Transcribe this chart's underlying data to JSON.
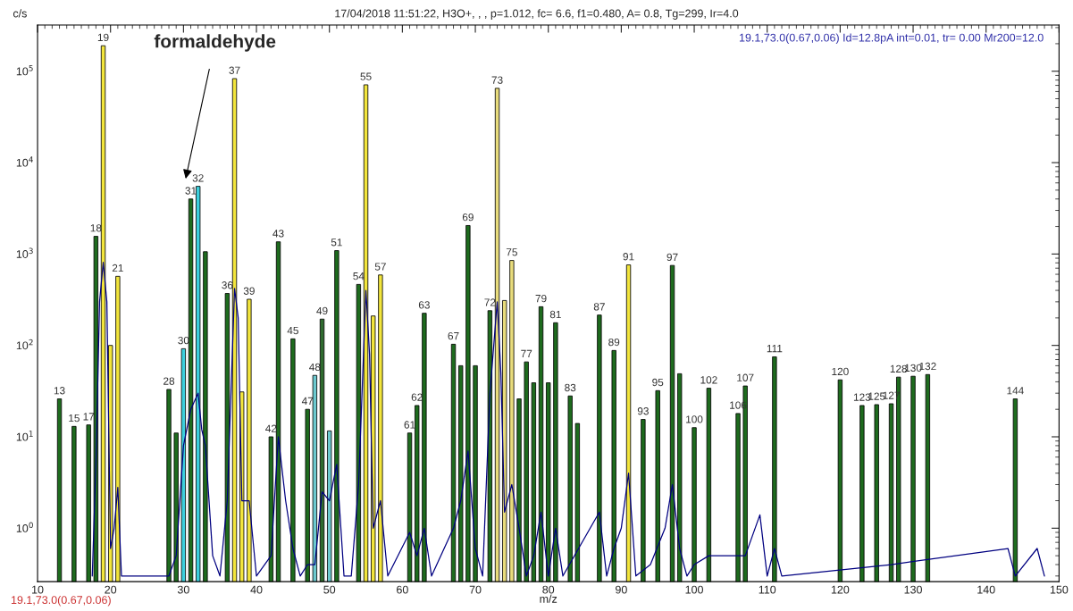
{
  "chart_data": {
    "type": "bar",
    "title": "17/04/2018 11:51:22, H3O+, , , p=1.012, fc= 6.6, f1=0.480, A= 0.8, Tg=299, Ir=4.0",
    "xlabel": "m/z",
    "ylabel": "c/s",
    "log": "y",
    "grid": false,
    "xlim": [
      10,
      150
    ],
    "xticks": [
      10,
      20,
      30,
      40,
      50,
      60,
      70,
      80,
      90,
      100,
      110,
      120,
      130,
      140,
      150
    ],
    "ylim": [
      0.26,
      320000
    ],
    "yticks": [
      {
        "value": 1,
        "label": "10$^{0}$"
      },
      {
        "value": 10,
        "label": "10$^{1}$"
      },
      {
        "value": 100,
        "label": "10$^{2}$"
      },
      {
        "value": 1000,
        "label": "10$^{3}$"
      },
      {
        "value": 10000,
        "label": "10$^{4}$"
      },
      {
        "value": 100000,
        "label": "10$^{5}$"
      }
    ],
    "annotations": [
      "formaldehyde",
      "19.1,73.0(0.67,0.06) Id=12.8pA int=0.01, tr= 0.00 Mr200=12.0",
      "19.1,73.0(0.67,0.06)",
      {
        "text": "13",
        "x": 13,
        "y": 26
      },
      {
        "text": "15",
        "x": 15,
        "y": 13
      },
      {
        "text": "17",
        "x": 17,
        "y": 13.5
      },
      {
        "text": "18",
        "x": 18,
        "y": 1560
      },
      {
        "text": "19",
        "x": 19,
        "y": 190000
      },
      {
        "text": "21",
        "x": 21,
        "y": 570
      },
      {
        "text": "28",
        "x": 28,
        "y": 33
      },
      {
        "text": "30",
        "x": 30,
        "y": 92
      },
      {
        "text": "31",
        "x": 31,
        "y": 4000
      },
      {
        "text": "32",
        "x": 32,
        "y": 5500
      },
      {
        "text": "36",
        "x": 36,
        "y": 370
      },
      {
        "text": "37",
        "x": 37,
        "y": 83000
      },
      {
        "text": "39",
        "x": 39,
        "y": 320
      },
      {
        "text": "42",
        "x": 42,
        "y": 10
      },
      {
        "text": "43",
        "x": 43,
        "y": 1360
      },
      {
        "text": "45",
        "x": 45,
        "y": 118
      },
      {
        "text": "47",
        "x": 47,
        "y": 20
      },
      {
        "text": "48",
        "x": 48,
        "y": 47
      },
      {
        "text": "49",
        "x": 49,
        "y": 194
      },
      {
        "text": "51",
        "x": 51,
        "y": 1090
      },
      {
        "text": "54",
        "x": 54,
        "y": 465
      },
      {
        "text": "55",
        "x": 55,
        "y": 71000
      },
      {
        "text": "57",
        "x": 57,
        "y": 590
      },
      {
        "text": "61",
        "x": 61,
        "y": 11
      },
      {
        "text": "62",
        "x": 62,
        "y": 22
      },
      {
        "text": "63",
        "x": 63,
        "y": 225
      },
      {
        "text": "67",
        "x": 67,
        "y": 103
      },
      {
        "text": "69",
        "x": 69,
        "y": 2050
      },
      {
        "text": "72",
        "x": 72,
        "y": 240
      },
      {
        "text": "73",
        "x": 73,
        "y": 65000
      },
      {
        "text": "75",
        "x": 75,
        "y": 850
      },
      {
        "text": "77",
        "x": 77,
        "y": 66
      },
      {
        "text": "79",
        "x": 79,
        "y": 265
      },
      {
        "text": "81",
        "x": 81,
        "y": 177
      },
      {
        "text": "83",
        "x": 83,
        "y": 28
      },
      {
        "text": "87",
        "x": 87,
        "y": 215
      },
      {
        "text": "89",
        "x": 89,
        "y": 88
      },
      {
        "text": "91",
        "x": 91,
        "y": 760
      },
      {
        "text": "93",
        "x": 93,
        "y": 15.5
      },
      {
        "text": "95",
        "x": 95,
        "y": 32
      },
      {
        "text": "97",
        "x": 97,
        "y": 750
      },
      {
        "text": "100",
        "x": 100,
        "y": 12.6
      },
      {
        "text": "102",
        "x": 102,
        "y": 34
      },
      {
        "text": "106",
        "x": 106,
        "y": 18
      },
      {
        "text": "107",
        "x": 107,
        "y": 36
      },
      {
        "text": "111",
        "x": 111,
        "y": 75
      },
      {
        "text": "120",
        "x": 120,
        "y": 42
      },
      {
        "text": "123",
        "x": 123,
        "y": 22
      },
      {
        "text": "125",
        "x": 125,
        "y": 22.5
      },
      {
        "text": "127",
        "x": 127,
        "y": 23
      },
      {
        "text": "128",
        "x": 128,
        "y": 45
      },
      {
        "text": "130",
        "x": 130,
        "y": 46
      },
      {
        "text": "132",
        "x": 132,
        "y": 48
      },
      {
        "text": "144",
        "x": 144,
        "y": 26
      }
    ],
    "series": [
      {
        "x": [
          13,
          15,
          17,
          18,
          19,
          20,
          21,
          28,
          29,
          30,
          31,
          32,
          33,
          36,
          37,
          38,
          39,
          42,
          43,
          45,
          47,
          48,
          49,
          50,
          51,
          54,
          55,
          56,
          57,
          61,
          62,
          63,
          67,
          68,
          69,
          70,
          72,
          73,
          74,
          75,
          76,
          77,
          78,
          79,
          80,
          81,
          83,
          84,
          87,
          89,
          91,
          93,
          95,
          97,
          98,
          100,
          102,
          106,
          107,
          111,
          120,
          123,
          125,
          127,
          128,
          130,
          132,
          144
        ],
        "values": [
          26,
          13,
          13.5,
          1560,
          190000,
          100,
          570,
          33,
          11,
          92,
          4000,
          5500,
          1060,
          370,
          83000,
          31,
          320,
          10,
          1360,
          118,
          20,
          47,
          194,
          11.6,
          1090,
          465,
          71000,
          210,
          590,
          11,
          22,
          225,
          103,
          60,
          2050,
          60,
          240,
          65000,
          310,
          850,
          26,
          66,
          39,
          265,
          39,
          177,
          28,
          14,
          215,
          88,
          760,
          15.5,
          32,
          750,
          49,
          12.6,
          34,
          18,
          36,
          75,
          42,
          22,
          22.5,
          23,
          45,
          46,
          48,
          26
        ],
        "colors": [
          "#1e6b1e",
          "#1e6b1e",
          "#1e6b1e",
          "#1e6b1e",
          "#f2e53c",
          "#f2e53c",
          "#f2e53c",
          "#1e6b1e",
          "#1e6b1e",
          "#3ccfdc",
          "#1e6b1e",
          "#3ccfdc",
          "#1e6b1e",
          "#1e6b1e",
          "#f2e53c",
          "#f2e53c",
          "#f2e53c",
          "#1e6b1e",
          "#1e6b1e",
          "#1e6b1e",
          "#1e6b1e",
          "#6cc9cf",
          "#2f6b2f",
          "#6cc9cf",
          "#1e6b1e",
          "#1e6b1e",
          "#f2e53c",
          "#f2e53c",
          "#f2e53c",
          "#1e6b1e",
          "#1e6b1e",
          "#1e6b1e",
          "#1e6b1e",
          "#1e6b1e",
          "#1e6b1e",
          "#1e6b1e",
          "#1e6b1e",
          "#e8dc7c",
          "#e8dc7c",
          "#e8dc7c",
          "#1e6b1e",
          "#1e6b1e",
          "#1e6b1e",
          "#1e6b1e",
          "#1e6b1e",
          "#1e6b1e",
          "#1e6b1e",
          "#1e6b1e",
          "#1e6b1e",
          "#1e6b1e",
          "#f2e53c",
          "#1e6b1e",
          "#1e6b1e",
          "#1e6b1e",
          "#1e6b1e",
          "#1e6b1e",
          "#1e6b1e",
          "#1e6b1e",
          "#1e6b1e",
          "#1e6b1e",
          "#1e6b1e",
          "#1e6b1e",
          "#1e6b1e",
          "#1e6b1e",
          "#1e6b1e",
          "#1e6b1e",
          "#1e6b1e",
          "#1e6b1e"
        ]
      },
      {
        "type": "line",
        "color": "#000080",
        "x": [
          17.5,
          18,
          18.5,
          19,
          19.5,
          20,
          20.5,
          21,
          21.5,
          28,
          29,
          30,
          31,
          32,
          32.5,
          33,
          34,
          35,
          36,
          37,
          37.5,
          38,
          39,
          40,
          42,
          43,
          44,
          45,
          46,
          47,
          48,
          49,
          50,
          51,
          52,
          53,
          54,
          55,
          55.5,
          56,
          57,
          58,
          61,
          62,
          63,
          64,
          67,
          68,
          69,
          70,
          71,
          72,
          73,
          73.5,
          74,
          75,
          76,
          77,
          78,
          79,
          80,
          81,
          82,
          87,
          88,
          89,
          90,
          91,
          92,
          94,
          96,
          97,
          98,
          99,
          100,
          102,
          107,
          109,
          110,
          111,
          112,
          127,
          143,
          144,
          147,
          148
        ],
        "values": [
          0.3,
          5,
          300,
          810,
          300,
          0.6,
          1,
          2.8,
          0.3,
          0.3,
          0.5,
          8,
          20,
          30,
          12,
          8,
          0.5,
          0.3,
          2,
          420,
          200,
          2,
          2,
          0.3,
          0.5,
          10,
          2,
          0.6,
          0.3,
          0.4,
          0.4,
          2.5,
          2,
          5,
          0.3,
          0.3,
          3,
          400,
          80,
          1,
          2,
          0.3,
          0.9,
          0.5,
          1,
          0.3,
          1,
          2,
          7,
          0.6,
          0.3,
          30,
          300,
          50,
          1.5,
          3,
          1,
          0.3,
          0.5,
          1.5,
          0.3,
          1,
          0.3,
          1.5,
          0.3,
          0.6,
          1,
          4,
          0.3,
          0.4,
          1,
          3,
          0.6,
          0.3,
          0.4,
          0.5,
          0.5,
          1.4,
          0.3,
          0.6,
          0.3,
          0.4,
          0.6,
          0.3,
          0.6,
          0.3
        ]
      }
    ]
  }
}
